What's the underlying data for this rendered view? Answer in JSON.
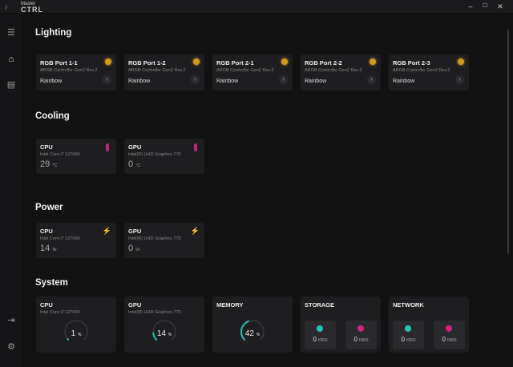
{
  "app": {
    "logo_small": "Master",
    "logo_big": "CTRL",
    "minimize": "–",
    "maximize": "☐",
    "close": "✕"
  },
  "sidebar": {
    "icons": [
      "menu-icon",
      "home-icon",
      "device-icon",
      "sign-in-icon",
      "settings-icon"
    ]
  },
  "lighting": {
    "title": "Lighting",
    "cards": [
      {
        "name": "RGB Port 1-1",
        "device": "ARGB Controller Gen2 Rev.2",
        "effect": "Rainbow"
      },
      {
        "name": "RGB Port 1-2",
        "device": "ARGB Controller Gen2 Rev.2",
        "effect": "Rainbow"
      },
      {
        "name": "RGB Port 2-1",
        "device": "ARGB Controller Gen2 Rev.2",
        "effect": "Rainbow"
      },
      {
        "name": "RGB Port 2-2",
        "device": "ARGB Controller Gen2 Rev.2",
        "effect": "Rainbow"
      },
      {
        "name": "RGB Port 2-3",
        "device": "ARGB Controller Gen2 Rev.2",
        "effect": "Rainbow"
      }
    ]
  },
  "cooling": {
    "title": "Cooling",
    "cards": [
      {
        "name": "CPU",
        "device": "Intel Core i7 12700K",
        "value": "29",
        "unit": "°C"
      },
      {
        "name": "GPU",
        "device": "Intel(R) UHD Graphics 770",
        "value": "0",
        "unit": "°C"
      }
    ]
  },
  "power": {
    "title": "Power",
    "cards": [
      {
        "name": "CPU",
        "device": "Intel Core i7 12700K",
        "value": "14",
        "unit": "W"
      },
      {
        "name": "GPU",
        "device": "Intel(R) UHD Graphics 770",
        "value": "0",
        "unit": "W"
      }
    ]
  },
  "system": {
    "title": "System",
    "gauges": [
      {
        "name": "CPU",
        "device": "Intel Core i7 12700K",
        "value": "1",
        "unit": "%",
        "percent": 1
      },
      {
        "name": "GPU",
        "device": "Intel(R) UHD Graphics 770",
        "value": "14",
        "unit": "%",
        "percent": 14
      },
      {
        "name": "MEMORY",
        "device": "",
        "value": "42",
        "unit": "%",
        "percent": 42
      }
    ],
    "storage": {
      "name": "STORAGE",
      "read": "0",
      "write": "0",
      "unit": "KB/S"
    },
    "network": {
      "name": "NETWORK",
      "up": "0",
      "down": "0",
      "unit": "KB/S"
    }
  },
  "colors": {
    "accent_teal": "#1fc7b4",
    "accent_pink": "#d0267f",
    "bulb": "#d29a1e",
    "bolt": "#e0a020"
  }
}
